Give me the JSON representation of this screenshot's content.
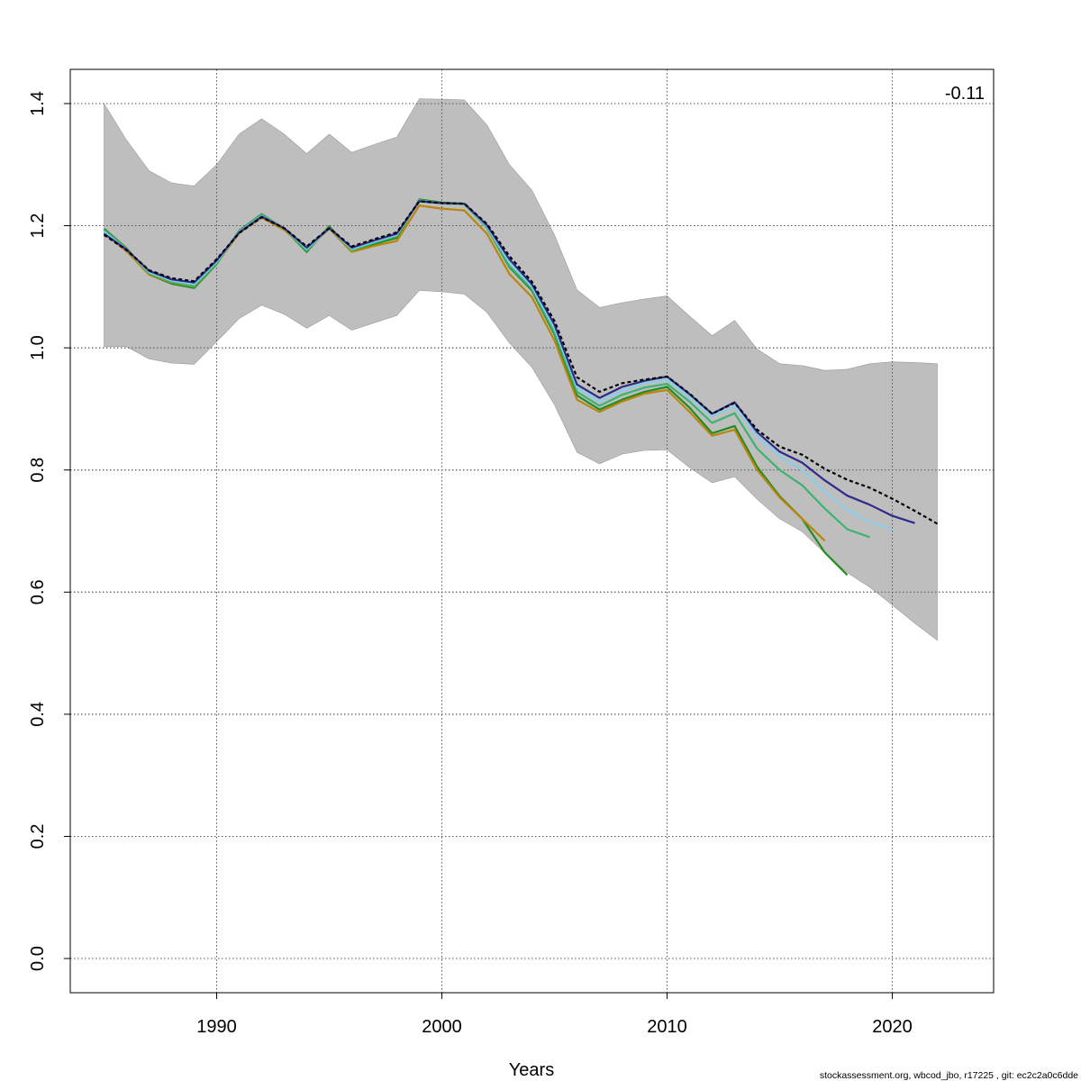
{
  "chart_data": {
    "type": "line",
    "title": "",
    "xlabel": "Years",
    "ylabel": "",
    "xlim": [
      1983.5,
      2024.5
    ],
    "ylim": [
      -0.056,
      1.456
    ],
    "grid": true,
    "x_ticks": [
      1990,
      2000,
      2010,
      2020
    ],
    "y_ticks": [
      0.0,
      0.2,
      0.4,
      0.6,
      0.8,
      1.0,
      1.2,
      1.4
    ],
    "annotation": "-0.11",
    "footer": "stockassessment.org, wbcod_jbo, r17225 , git: ec2c2a0c6dde",
    "confidence_band": {
      "color": "#bebebe",
      "x": [
        1985,
        1986,
        1987,
        1988,
        1989,
        1990,
        1991,
        1992,
        1993,
        1994,
        1995,
        1996,
        1997,
        1998,
        1999,
        2000,
        2001,
        2002,
        2003,
        2004,
        2005,
        2006,
        2007,
        2008,
        2009,
        2010,
        2011,
        2012,
        2013,
        2014,
        2015,
        2016,
        2017,
        2018,
        2019,
        2020,
        2021,
        2022
      ],
      "upper": [
        1.4,
        1.34,
        1.29,
        1.27,
        1.265,
        1.3,
        1.35,
        1.375,
        1.35,
        1.318,
        1.35,
        1.32,
        1.333,
        1.345,
        1.408,
        1.407,
        1.406,
        1.365,
        1.3,
        1.258,
        1.185,
        1.095,
        1.066,
        1.074,
        1.08,
        1.085,
        1.052,
        1.02,
        1.045,
        0.998,
        0.974,
        0.971,
        0.963,
        0.965,
        0.974,
        0.977,
        0.976,
        0.974
      ],
      "lower": [
        1.002,
        1.002,
        0.982,
        0.975,
        0.973,
        1.01,
        1.048,
        1.07,
        1.055,
        1.032,
        1.053,
        1.029,
        1.041,
        1.053,
        1.094,
        1.092,
        1.088,
        1.058,
        1.008,
        0.968,
        0.907,
        0.829,
        0.81,
        0.826,
        0.832,
        0.833,
        0.804,
        0.779,
        0.789,
        0.752,
        0.72,
        0.699,
        0.664,
        0.632,
        0.608,
        0.579,
        0.549,
        0.521
      ]
    },
    "series": [
      {
        "color": "#228b22",
        "x": [
          1985,
          1986,
          1987,
          1988,
          1989,
          1990,
          1991,
          1992,
          1993,
          1994,
          1995,
          1996,
          1997,
          1998,
          1999,
          2000,
          2001,
          2002,
          2003,
          2004,
          2005,
          2006,
          2007,
          2008,
          2009,
          2010,
          2011,
          2012,
          2013,
          2014,
          2015,
          2016,
          2017,
          2018
        ],
        "values": [
          1.195,
          1.163,
          1.12,
          1.105,
          1.098,
          1.137,
          1.192,
          1.219,
          1.195,
          1.157,
          1.199,
          1.159,
          1.17,
          1.18,
          1.243,
          1.238,
          1.236,
          1.197,
          1.132,
          1.094,
          1.022,
          0.922,
          0.899,
          0.915,
          0.928,
          0.936,
          0.902,
          0.86,
          0.872,
          0.805,
          0.757,
          0.72,
          0.665,
          0.628
        ]
      },
      {
        "color": "#b8860b",
        "x": [
          1985,
          1986,
          1987,
          1988,
          1989,
          1990,
          1991,
          1992,
          1993,
          1994,
          1995,
          1996,
          1997,
          1998,
          1999,
          2000,
          2001,
          2002,
          2003,
          2004,
          2005,
          2006,
          2007,
          2008,
          2009,
          2010,
          2011,
          2012,
          2013,
          2014,
          2015,
          2016,
          2017
        ],
        "values": [
          1.188,
          1.158,
          1.12,
          1.107,
          1.1,
          1.138,
          1.188,
          1.213,
          1.193,
          1.161,
          1.195,
          1.157,
          1.167,
          1.175,
          1.233,
          1.228,
          1.225,
          1.187,
          1.121,
          1.083,
          1.012,
          0.915,
          0.895,
          0.912,
          0.925,
          0.931,
          0.895,
          0.856,
          0.866,
          0.8,
          0.755,
          0.72,
          0.684
        ]
      },
      {
        "color": "#3cb371",
        "x": [
          1985,
          1986,
          1987,
          1988,
          1989,
          1990,
          1991,
          1992,
          1993,
          1994,
          1995,
          1996,
          1997,
          1998,
          1999,
          2000,
          2001,
          2002,
          2003,
          2004,
          2005,
          2006,
          2007,
          2008,
          2009,
          2010,
          2011,
          2012,
          2013,
          2014,
          2015,
          2016,
          2017,
          2018,
          2019
        ],
        "values": [
          1.193,
          1.162,
          1.122,
          1.108,
          1.101,
          1.138,
          1.191,
          1.218,
          1.196,
          1.159,
          1.197,
          1.16,
          1.172,
          1.183,
          1.242,
          1.237,
          1.235,
          1.197,
          1.134,
          1.097,
          1.025,
          0.928,
          0.905,
          0.923,
          0.935,
          0.941,
          0.912,
          0.877,
          0.893,
          0.835,
          0.8,
          0.775,
          0.737,
          0.703,
          0.69
        ]
      },
      {
        "color": "#87ceeb",
        "x": [
          1985,
          1986,
          1987,
          1988,
          1989,
          1990,
          1991,
          1992,
          1993,
          1994,
          1995,
          1996,
          1997,
          1998,
          1999,
          2000,
          2001,
          2002,
          2003,
          2004,
          2005,
          2006,
          2007,
          2008,
          2009,
          2010,
          2011,
          2012,
          2013,
          2014,
          2015,
          2016,
          2017,
          2018,
          2019,
          2020
        ],
        "values": [
          1.19,
          1.161,
          1.124,
          1.11,
          1.104,
          1.141,
          1.19,
          1.216,
          1.196,
          1.162,
          1.196,
          1.162,
          1.174,
          1.185,
          1.24,
          1.237,
          1.236,
          1.199,
          1.14,
          1.1,
          1.032,
          0.935,
          0.912,
          0.93,
          0.942,
          0.948,
          0.92,
          0.888,
          0.905,
          0.855,
          0.822,
          0.8,
          0.765,
          0.735,
          0.715,
          0.703
        ]
      },
      {
        "color": "#2e2b8b",
        "x": [
          1985,
          1986,
          1987,
          1988,
          1989,
          1990,
          1991,
          1992,
          1993,
          1994,
          1995,
          1996,
          1997,
          1998,
          1999,
          2000,
          2001,
          2002,
          2003,
          2004,
          2005,
          2006,
          2007,
          2008,
          2009,
          2010,
          2011,
          2012,
          2013,
          2014,
          2015,
          2016,
          2017,
          2018,
          2019,
          2020,
          2021
        ],
        "values": [
          1.187,
          1.161,
          1.126,
          1.112,
          1.107,
          1.143,
          1.189,
          1.215,
          1.196,
          1.164,
          1.196,
          1.164,
          1.176,
          1.187,
          1.24,
          1.237,
          1.236,
          1.201,
          1.145,
          1.104,
          1.038,
          0.94,
          0.918,
          0.936,
          0.946,
          0.953,
          0.924,
          0.892,
          0.911,
          0.862,
          0.83,
          0.812,
          0.783,
          0.758,
          0.743,
          0.725,
          0.713
        ]
      },
      {
        "color": "#000000",
        "dashed": true,
        "x": [
          1985,
          1986,
          1987,
          1988,
          1989,
          1990,
          1991,
          1992,
          1993,
          1994,
          1995,
          1996,
          1997,
          1998,
          1999,
          2000,
          2001,
          2002,
          2003,
          2004,
          2005,
          2006,
          2007,
          2008,
          2009,
          2010,
          2011,
          2012,
          2013,
          2014,
          2015,
          2016,
          2017,
          2018,
          2019,
          2020,
          2021,
          2022
        ],
        "values": [
          1.185,
          1.16,
          1.127,
          1.114,
          1.109,
          1.145,
          1.188,
          1.214,
          1.196,
          1.166,
          1.196,
          1.166,
          1.178,
          1.189,
          1.24,
          1.237,
          1.236,
          1.203,
          1.15,
          1.108,
          1.044,
          0.952,
          0.928,
          0.942,
          0.948,
          0.953,
          0.925,
          0.892,
          0.91,
          0.866,
          0.838,
          0.825,
          0.802,
          0.784,
          0.771,
          0.753,
          0.733,
          0.712
        ]
      }
    ]
  }
}
